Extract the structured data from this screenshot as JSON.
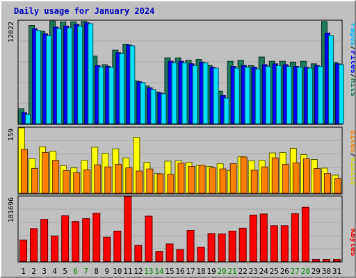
{
  "chart_data": {
    "type": "bar",
    "title": "Daily usage for January 2024",
    "categories": [
      "1",
      "2",
      "3",
      "4",
      "5",
      "6",
      "7",
      "8",
      "9",
      "10",
      "11",
      "12",
      "13",
      "14",
      "15",
      "16",
      "17",
      "18",
      "19",
      "20",
      "21",
      "22",
      "23",
      "24",
      "25",
      "26",
      "27",
      "28",
      "29",
      "30",
      "31"
    ],
    "weekend_days": [
      "6",
      "7",
      "13",
      "14",
      "20",
      "21",
      "27",
      "28"
    ],
    "panels": [
      {
        "id": "hits-panel",
        "max_label": "12022",
        "ylim": [
          0,
          12022
        ],
        "series": [
          {
            "name": "Hits",
            "color": "#1e7a5a",
            "values": [
              1750,
              11500,
              10800,
              12000,
              11900,
              11900,
              11950,
              7900,
              6900,
              8600,
              9300,
              5000,
              4400,
              3700,
              7700,
              7700,
              7400,
              7500,
              6800,
              3800,
              7300,
              7400,
              6800,
              7800,
              7300,
              7300,
              7200,
              7300,
              7000,
              11950,
              7150
            ]
          },
          {
            "name": "Files",
            "color": "#0000ff",
            "values": [
              1300,
              11100,
              10500,
              11300,
              11400,
              11600,
              11800,
              6800,
              6700,
              8300,
              9200,
              4900,
              4200,
              3600,
              7300,
              7300,
              7000,
              7200,
              6600,
              3300,
              6700,
              6800,
              6600,
              6900,
              7000,
              6900,
              6700,
              6600,
              6800,
              10600,
              7000
            ]
          },
          {
            "name": "Pages",
            "color": "#00e0ff",
            "values": [
              1100,
              10900,
              10300,
              11100,
              11200,
              11400,
              11700,
              6600,
              6600,
              8200,
              9100,
              4800,
              4000,
              3500,
              7100,
              7100,
              6800,
              7100,
              6500,
              3000,
              6500,
              6600,
              6400,
              6700,
              6800,
              6700,
              6600,
              6500,
              6700,
              10300,
              6900
            ]
          }
        ]
      },
      {
        "id": "visits-panel",
        "max_label": "159",
        "ylim": [
          0,
          159
        ],
        "series": [
          {
            "name": "Visits",
            "color": "#ffff00",
            "values": [
              159,
              84,
              113,
              102,
              67,
              62,
              80,
              112,
              97,
              108,
              86,
              136,
              75,
              48,
              78,
              79,
              75,
              68,
              65,
              72,
              55,
              89,
              79,
              80,
              98,
              99,
              109,
              94,
              82,
              61,
              44
            ]
          },
          {
            "name": "Sites",
            "color": "#ff8000",
            "values": [
              107,
              60,
              99,
              80,
              55,
              50,
              57,
              69,
              64,
              70,
              62,
              54,
              59,
              47,
              46,
              73,
              65,
              68,
              62,
              59,
              72,
              88,
              56,
              64,
              86,
              70,
              74,
              84,
              60,
              48,
              36
            ]
          }
        ]
      },
      {
        "id": "kbytes-panel",
        "max_label": "181696",
        "ylim": [
          0,
          181696
        ],
        "series": [
          {
            "name": "KBytes",
            "color": "#ff0000",
            "values": [
              60000,
              92000,
              118000,
              71000,
              128000,
              112000,
              120000,
              135000,
              68000,
              85000,
              181696,
              45000,
              127000,
              28000,
              49000,
              33000,
              87000,
              40000,
              78000,
              77000,
              85000,
              93000,
              130000,
              133000,
              100000,
              100000,
              134000,
              152000,
              5000,
              5000,
              5000
            ]
          }
        ]
      }
    ],
    "right_labels": {
      "top": [
        {
          "text": "Pages",
          "color": "#00c0ff"
        },
        {
          "text": "/",
          "color": "#000000"
        },
        {
          "text": "Files",
          "color": "#0000ff"
        },
        {
          "text": "/",
          "color": "#000000"
        },
        {
          "text": "Hits",
          "color": "#1e7a5a"
        }
      ],
      "middle": [
        {
          "text": "Sites",
          "color": "#ff8000"
        },
        {
          "text": "/",
          "color": "#000000"
        },
        {
          "text": "Visits",
          "color": "#e0e000"
        }
      ],
      "bottom": [
        {
          "text": "KBytes",
          "color": "#ff0000"
        }
      ]
    },
    "title_color": "#0000c0",
    "weekday_label_color": "#000000",
    "weekend_label_color": "#008000"
  }
}
